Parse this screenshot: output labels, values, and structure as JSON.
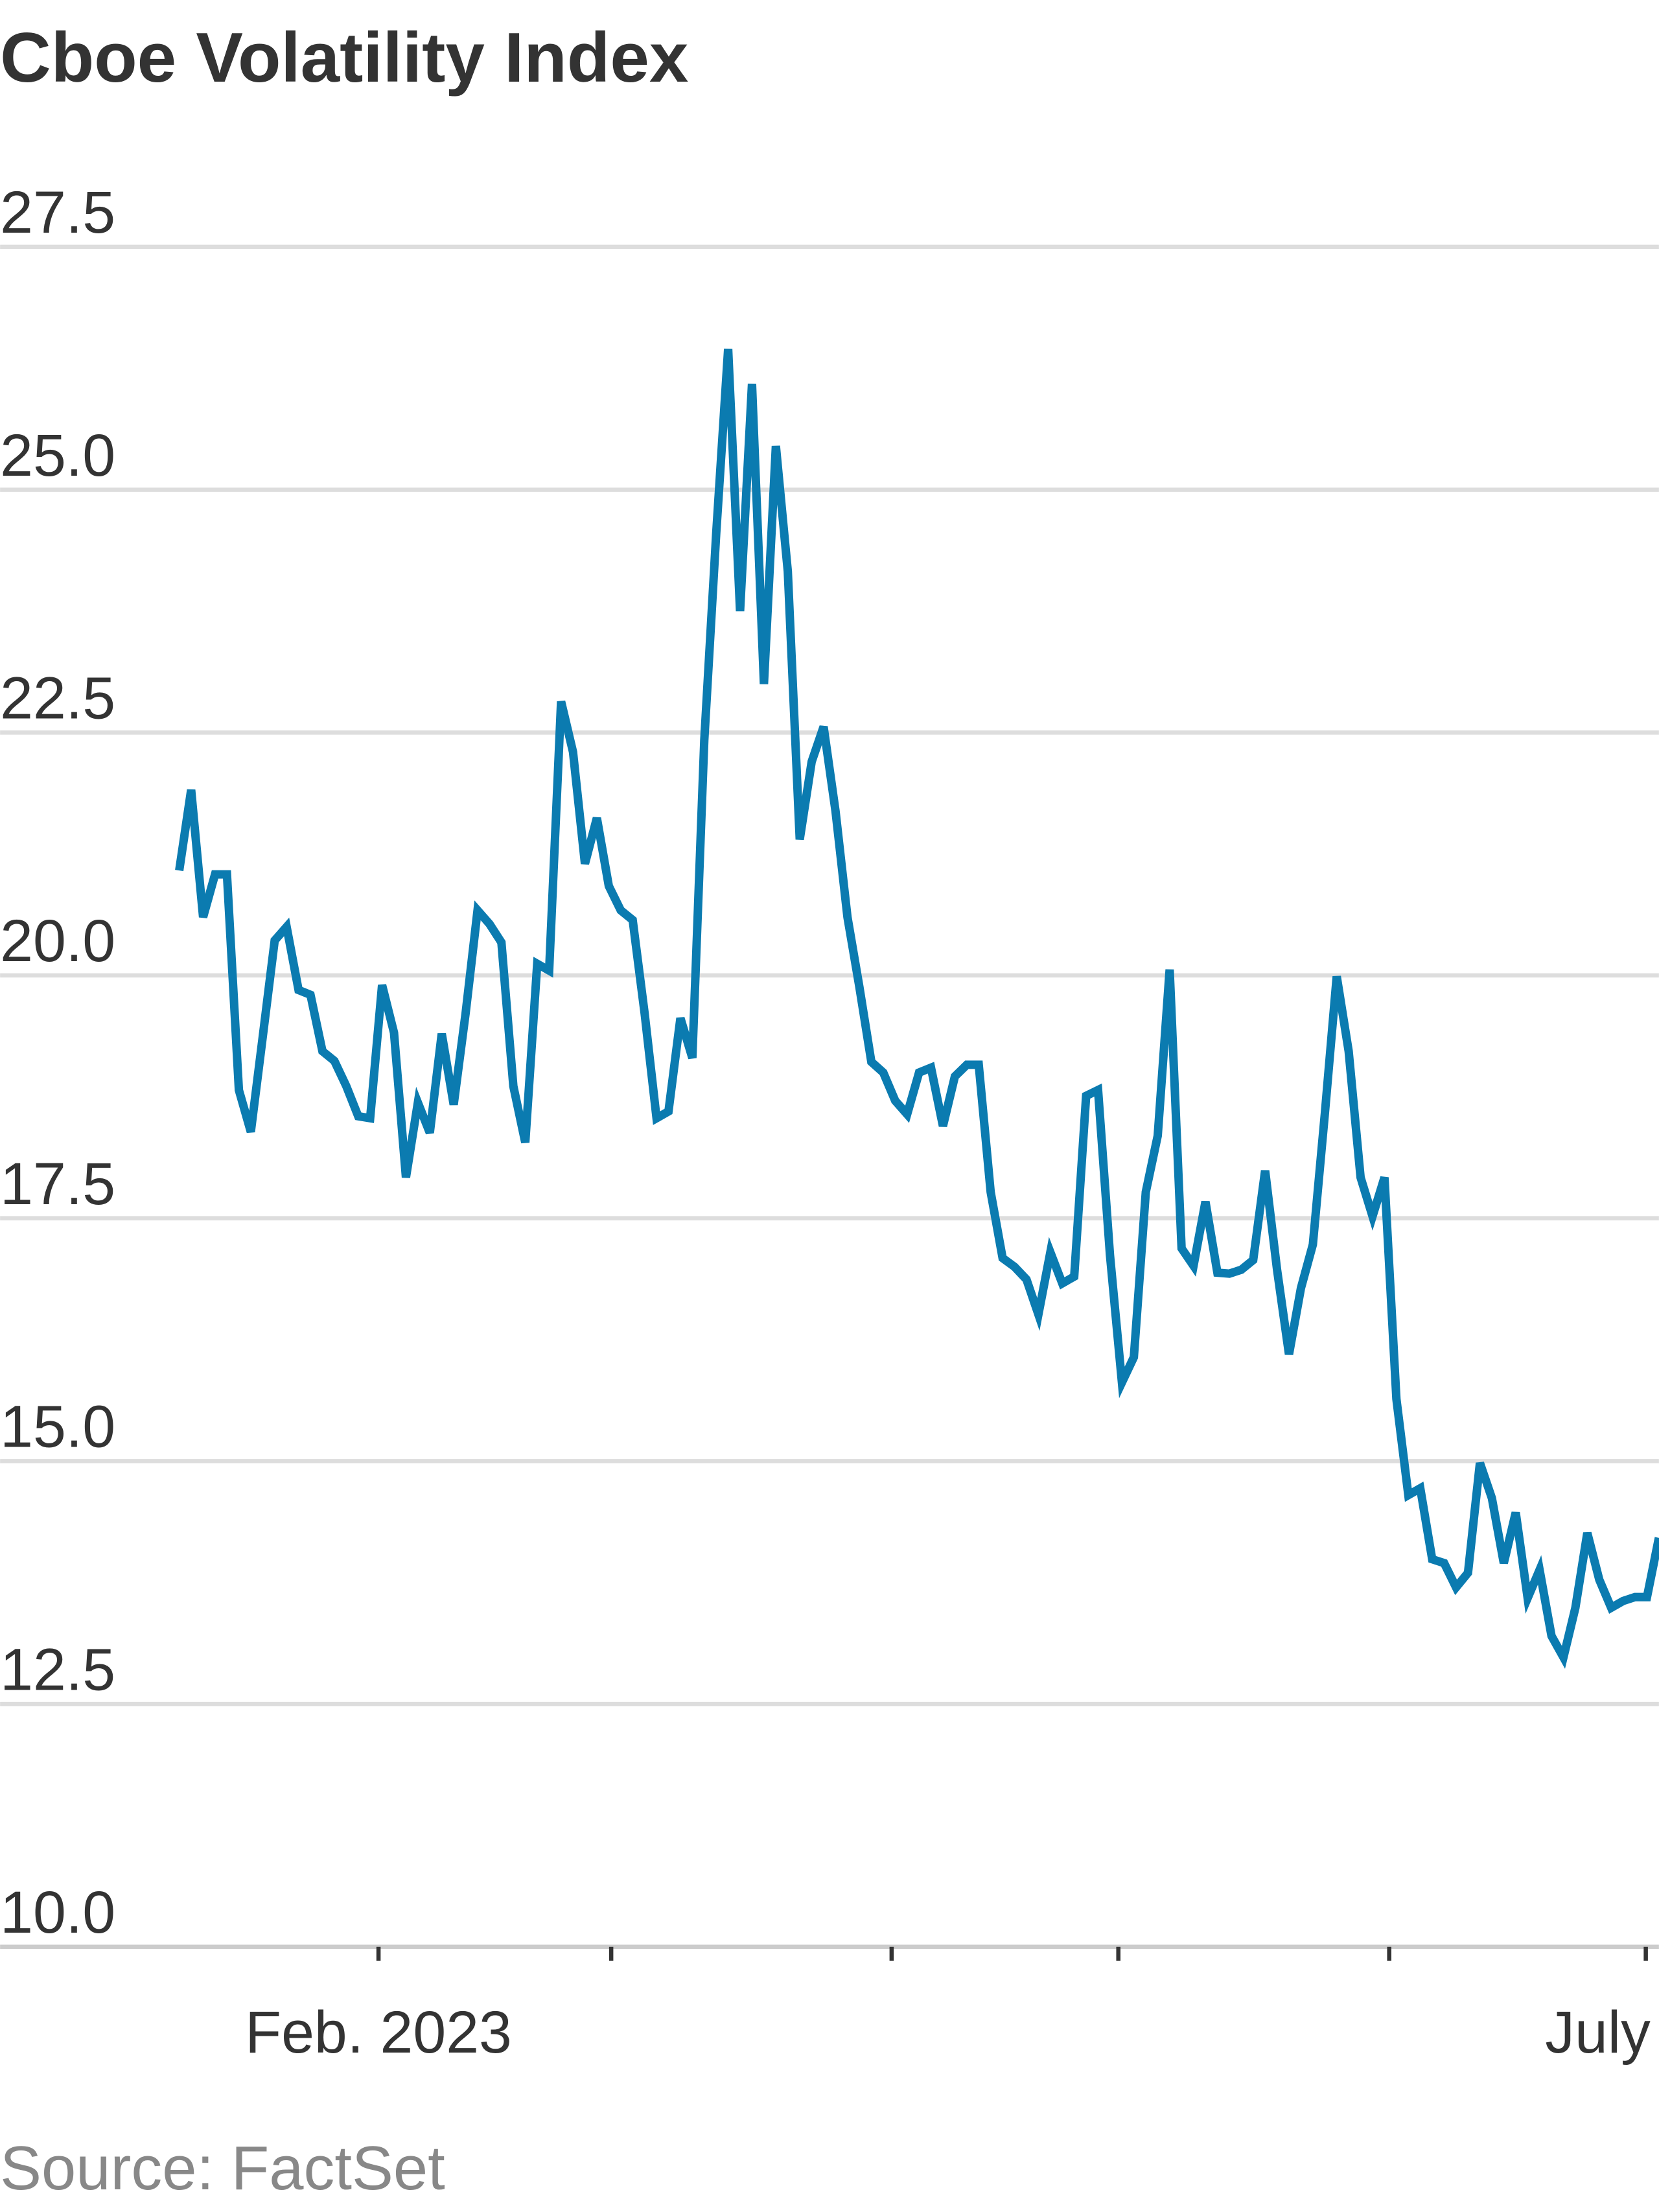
{
  "chart_data": {
    "type": "line",
    "title": "Cboe Volatility Index",
    "source": "Source: FactSet",
    "categories": [
      null,
      null,
      null,
      null,
      null,
      null,
      null,
      null,
      null,
      null,
      null,
      null,
      null,
      null,
      null,
      null,
      null,
      null,
      null,
      null,
      null,
      null,
      null,
      null,
      null,
      null,
      null,
      null,
      null,
      null,
      null,
      null,
      null,
      null,
      null,
      null,
      null,
      null,
      null,
      null,
      null,
      null,
      null,
      null,
      null,
      null,
      null,
      null,
      null,
      null,
      null,
      null,
      null,
      null,
      null,
      null,
      null,
      null,
      null,
      null,
      null,
      null,
      null,
      null,
      null,
      null,
      null,
      null,
      null,
      null,
      null,
      null,
      null,
      null,
      null,
      null,
      null,
      null,
      null,
      null,
      null,
      null,
      null,
      null,
      null,
      null,
      null,
      null,
      null,
      null,
      null,
      null,
      null,
      null,
      null,
      null,
      null,
      null,
      null,
      null,
      null,
      null,
      null,
      null,
      null,
      null,
      null,
      null,
      null,
      null,
      null,
      null,
      null,
      null,
      null,
      null,
      null,
      null,
      null,
      null,
      null,
      null,
      null,
      null,
      null
    ],
    "series": [
      {
        "name": "Cboe Volatility Index",
        "color": "#0b7bb0",
        "values": [
          21.08,
          21.91,
          20.6,
          21.04,
          21.04,
          18.82,
          18.39,
          19.37,
          20.36,
          20.5,
          19.85,
          19.8,
          19.22,
          19.12,
          18.86,
          18.55,
          18.53,
          19.9,
          19.41,
          17.92,
          18.69,
          18.38,
          19.4,
          18.67,
          19.61,
          20.67,
          20.53,
          20.34,
          18.86,
          18.28,
          20.12,
          20.05,
          22.82,
          22.3,
          21.15,
          21.62,
          20.92,
          20.67,
          20.57,
          19.61,
          18.53,
          18.6,
          19.56,
          19.15,
          22.42,
          24.55,
          26.45,
          23.75,
          26.09,
          23.0,
          25.45,
          24.16,
          21.4,
          22.2,
          22.56,
          21.69,
          20.6,
          19.88,
          19.11,
          19.0,
          18.71,
          18.57,
          19.0,
          19.05,
          18.45,
          18.96,
          19.08,
          19.08,
          17.77,
          17.09,
          17.0,
          16.87,
          16.51,
          17.15,
          16.83,
          16.9,
          18.76,
          18.82,
          17.12,
          15.81,
          16.07,
          17.77,
          18.35,
          20.06,
          17.19,
          17.01,
          17.67,
          16.94,
          16.93,
          16.97,
          17.07,
          17.99,
          16.97,
          16.1,
          16.78,
          17.23,
          18.57,
          19.99,
          19.22,
          17.92,
          17.52,
          17.92,
          15.64,
          14.65,
          14.72,
          13.99,
          13.95,
          13.7,
          13.85,
          14.98,
          14.62,
          13.95,
          14.47,
          13.59,
          13.88,
          13.2,
          12.98,
          13.49,
          14.26,
          13.78,
          13.49,
          13.56,
          13.6,
          13.6,
          14.21
        ]
      }
    ],
    "xlim": [
      0,
      124
    ],
    "xticks": [
      {
        "value": 16.7,
        "label": "Feb. 2023"
      },
      {
        "value": 36.2,
        "label": null
      },
      {
        "value": 59.7,
        "label": null
      },
      {
        "value": 78.7,
        "label": null
      },
      {
        "value": 101.4,
        "label": null
      },
      {
        "value": 122.9,
        "label": "July"
      }
    ],
    "ylim": [
      10,
      27.5
    ],
    "yticks": [
      {
        "value": 10,
        "label": "10.0"
      },
      12.5,
      {
        "value": 15,
        "label": "15.0"
      },
      17.5,
      {
        "value": 20,
        "label": "20.0"
      },
      22.5,
      {
        "value": 25,
        "label": "25.0"
      },
      27.5
    ],
    "grid": true
  }
}
